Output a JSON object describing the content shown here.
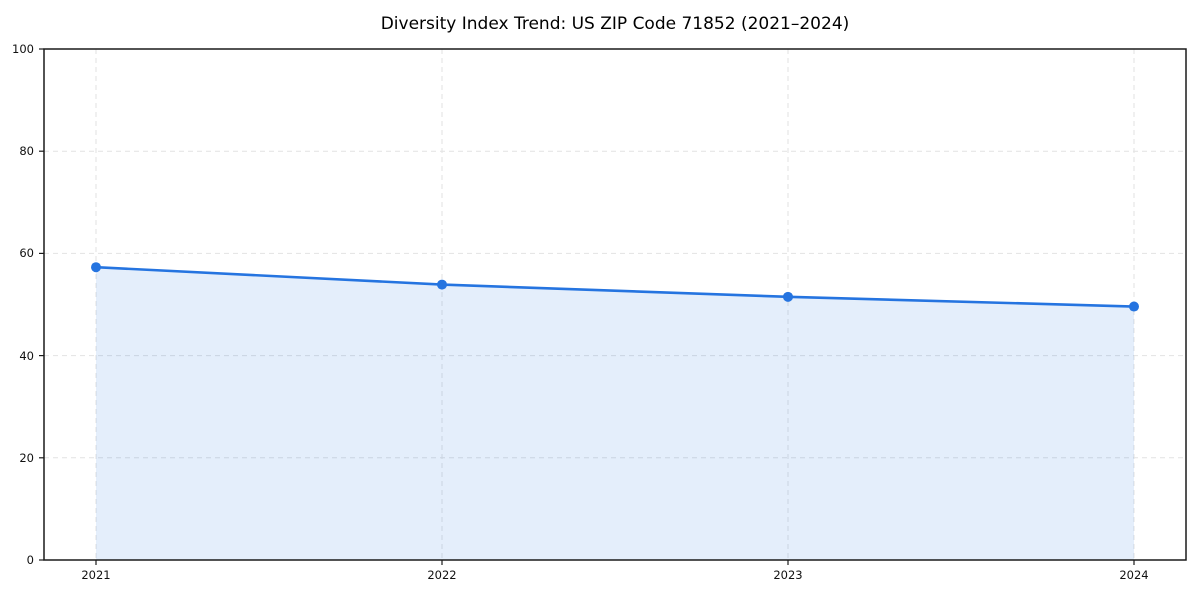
{
  "figure": {
    "title": "Diversity Index Trend: US ZIP Code 71852 (2021–2024)"
  },
  "chart_data": {
    "type": "area",
    "title": "Diversity Index Trend: US ZIP Code 71852 (2021–2024)",
    "categories": [
      "2021",
      "2022",
      "2023",
      "2024"
    ],
    "series": [
      {
        "name": "Diversity Index",
        "values": [
          57.3,
          53.9,
          51.5,
          49.6
        ]
      }
    ],
    "xlabel": "",
    "ylabel": "",
    "ylim": [
      0,
      100
    ],
    "yticks": [
      0,
      20,
      40,
      60,
      80,
      100
    ],
    "grid": true,
    "grid_style": "dashed-both-axes",
    "legend": false,
    "marker": "circle",
    "colors": {
      "line": "#2574e0",
      "marker": "#2574e0",
      "fill": "rgba(37,116,224,0.12)",
      "gridline": "#e2e2e2",
      "spine": "#1a1a1a",
      "tick": "#1a1a1a",
      "tick_label": "#111111",
      "title": "#000000",
      "background": "#ffffff"
    }
  }
}
